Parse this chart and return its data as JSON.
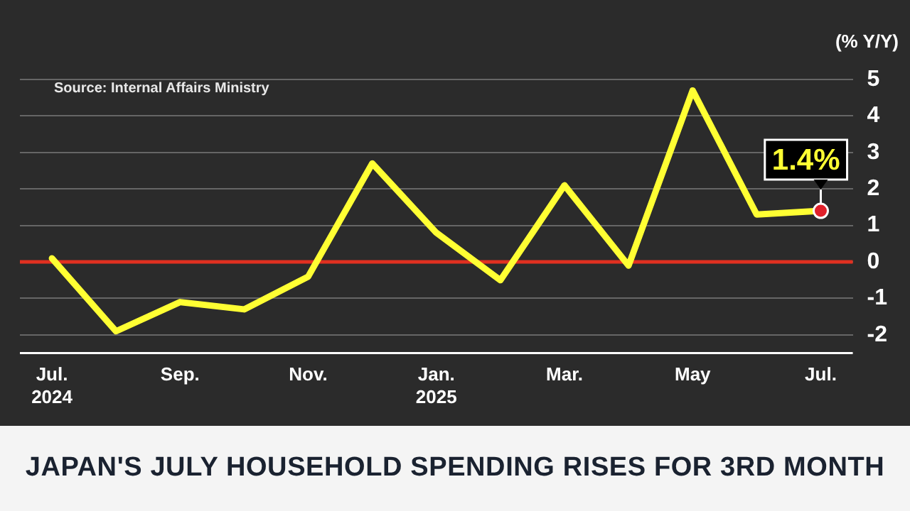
{
  "chart_data": {
    "type": "line",
    "title": "JAPAN'S JULY HOUSEHOLD SPENDING RISES FOR 3RD MONTH",
    "ylabel": "(% Y/Y)",
    "categories": [
      "Jul.\n2024",
      null,
      "Sep.",
      null,
      "Nov.",
      null,
      "Jan.\n2025",
      null,
      "Mar.",
      null,
      "May",
      null,
      "Jul."
    ],
    "series": [
      {
        "color": "#ffff33",
        "values": [
          0.1,
          -1.9,
          -1.1,
          -1.3,
          -0.4,
          2.7,
          0.8,
          -0.5,
          2.1,
          -0.1,
          4.7,
          1.3,
          1.4
        ],
        "marker": "none"
      },
      {
        "type": "scatter",
        "color": "#e0202a",
        "marker": "circle",
        "values": [
          null,
          null,
          null,
          null,
          null,
          null,
          null,
          null,
          null,
          null,
          null,
          null,
          1.4
        ]
      }
    ],
    "ylim": [
      -2.5,
      5
    ],
    "yticks": [
      -2,
      -1,
      0,
      1,
      2,
      3,
      4,
      5
    ],
    "grid": "y",
    "legend": false,
    "ref_lines": [
      {
        "axis": "y",
        "value": 0,
        "color": "#e03020"
      }
    ],
    "annotations": [
      "Source: Internal Affairs Ministry",
      {
        "text": "1.4%",
        "x": "Jul.",
        "y": 1.4
      }
    ]
  }
}
